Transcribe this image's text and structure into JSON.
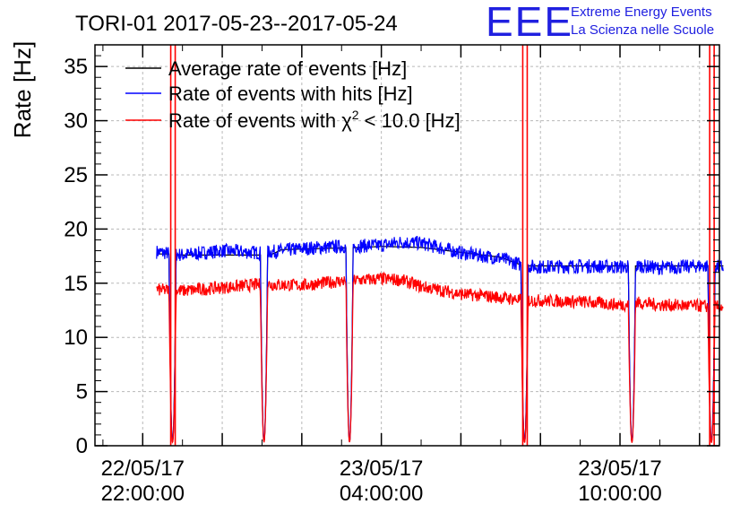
{
  "title": "TORI-01 2017-05-23--2017-05-24",
  "logo": {
    "mark": "EEE",
    "line1": "Extreme Energy Events",
    "line2": "La Scienza nelle Scuole",
    "color": "#1a1ae6"
  },
  "chart_data": {
    "type": "line",
    "title": "TORI-01 2017-05-23--2017-05-24",
    "xlabel": "",
    "ylabel": "Rate [Hz]",
    "ylim": [
      0,
      37
    ],
    "yticks": [
      0,
      5,
      10,
      15,
      20,
      25,
      30,
      35
    ],
    "xlim_hours": [
      -1.2,
      14.5
    ],
    "xticks": [
      {
        "hour": 0,
        "line1": "22/05/17",
        "line2": "22:00:00"
      },
      {
        "hour": 6,
        "line1": "23/05/17",
        "line2": "04:00:00"
      },
      {
        "hour": 12,
        "line1": "23/05/17",
        "line2": "10:00:00"
      }
    ],
    "grid": true,
    "legend_position": "top-left",
    "dips_hours": [
      0.75,
      3.05,
      5.2,
      9.6,
      12.3,
      14.3
    ],
    "series": [
      {
        "name": "Average rate of events [Hz]",
        "color": "#000000",
        "x_hours": [
          0.4,
          0.7,
          1.0,
          3.2,
          3.5,
          5.5,
          6.0,
          7.0,
          9.0,
          9.5,
          9.7,
          12.4,
          14.4,
          14.6
        ],
        "values": [
          17.7,
          17.7,
          17.6,
          17.6,
          18.1,
          18.3,
          18.4,
          18.3,
          17.4,
          16.7,
          16.6,
          16.6,
          16.6,
          16.6
        ]
      },
      {
        "name": "Rate of events with hits [Hz]",
        "color": "#0000ff",
        "x_hours": [
          0.35,
          1.0,
          2.0,
          3.0,
          4.0,
          5.0,
          6.0,
          6.5,
          7.0,
          8.0,
          9.0,
          9.6,
          10.0,
          11.0,
          12.0,
          12.5,
          13.0,
          14.0,
          14.6
        ],
        "values": [
          17.9,
          17.6,
          18.0,
          17.8,
          18.2,
          18.4,
          18.5,
          18.8,
          18.7,
          17.8,
          17.3,
          16.6,
          16.5,
          16.6,
          16.5,
          16.6,
          16.4,
          16.6,
          16.5
        ]
      },
      {
        "name": "Rate of events with χ² < 10.0 [Hz]",
        "legend_main": "Rate of events with χ",
        "legend_sup": "2",
        "legend_tail": " < 10.0 [Hz]",
        "color": "#ff0000",
        "x_hours": [
          0.35,
          1.0,
          2.0,
          3.0,
          4.0,
          5.0,
          6.0,
          6.5,
          7.0,
          8.0,
          9.0,
          9.6,
          10.0,
          11.0,
          12.0,
          12.5,
          13.0,
          14.0,
          14.6
        ],
        "values": [
          14.4,
          14.3,
          14.6,
          14.9,
          14.8,
          15.2,
          15.4,
          15.3,
          14.7,
          14.0,
          13.7,
          13.4,
          13.4,
          13.3,
          13.0,
          13.2,
          13.0,
          12.9,
          12.8
        ]
      }
    ]
  }
}
